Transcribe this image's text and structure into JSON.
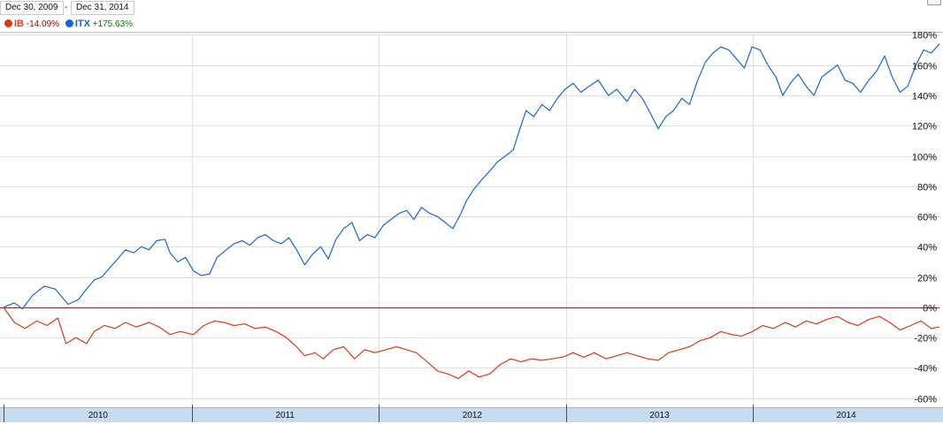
{
  "date_range": {
    "start": "Dec 30, 2009",
    "separator": "-",
    "end": "Dec 31, 2014"
  },
  "legend": [
    {
      "symbol": "IB",
      "change": "-14.09%",
      "color": "#dc3912",
      "sign": "neg"
    },
    {
      "symbol": "ITX",
      "change": "+175.63%",
      "color": "#1565d8",
      "sign": "pos"
    }
  ],
  "colors": {
    "IB": "#dc3912",
    "ITX": "#1565d8",
    "grid": "#e0e0e0",
    "zero_line": "#7f2b2b",
    "timeline": "#c6daf1"
  },
  "chart_data": {
    "type": "line",
    "x_range": [
      "2009-12-30",
      "2014-12-31"
    ],
    "year_labels": [
      "2010",
      "2011",
      "2012",
      "2013",
      "2014"
    ],
    "y_ticks": [
      "180%",
      "160%",
      "140%",
      "120%",
      "100%",
      "80%",
      "60%",
      "40%",
      "20%",
      "0%",
      "-20%",
      "-40%",
      "-60%"
    ],
    "y_tick_values": [
      180,
      160,
      140,
      120,
      100,
      80,
      60,
      40,
      20,
      0,
      -20,
      -40,
      -60
    ],
    "ylim": [
      -66,
      182
    ],
    "grid": true,
    "series": [
      {
        "name": "ITX",
        "color": "#1565d8",
        "points": [
          [
            "2009-12-30",
            0
          ],
          [
            "2010-01-20",
            3
          ],
          [
            "2010-02-05",
            -1
          ],
          [
            "2010-02-25",
            8
          ],
          [
            "2010-03-20",
            14
          ],
          [
            "2010-04-10",
            12
          ],
          [
            "2010-05-05",
            2
          ],
          [
            "2010-05-25",
            5
          ],
          [
            "2010-06-10",
            12
          ],
          [
            "2010-06-25",
            18
          ],
          [
            "2010-07-10",
            20
          ],
          [
            "2010-07-25",
            26
          ],
          [
            "2010-08-10",
            32
          ],
          [
            "2010-08-25",
            38
          ],
          [
            "2010-09-10",
            36
          ],
          [
            "2010-09-25",
            40
          ],
          [
            "2010-10-10",
            38
          ],
          [
            "2010-10-25",
            44
          ],
          [
            "2010-11-10",
            45
          ],
          [
            "2010-11-20",
            36
          ],
          [
            "2010-12-05",
            30
          ],
          [
            "2010-12-20",
            33
          ],
          [
            "2011-01-05",
            24
          ],
          [
            "2011-01-20",
            21
          ],
          [
            "2011-02-05",
            22
          ],
          [
            "2011-02-20",
            33
          ],
          [
            "2011-03-10",
            38
          ],
          [
            "2011-03-25",
            42
          ],
          [
            "2011-04-10",
            44
          ],
          [
            "2011-04-25",
            41
          ],
          [
            "2011-05-10",
            46
          ],
          [
            "2011-05-25",
            48
          ],
          [
            "2011-06-10",
            44
          ],
          [
            "2011-06-25",
            42
          ],
          [
            "2011-07-10",
            46
          ],
          [
            "2011-07-25",
            38
          ],
          [
            "2011-08-10",
            28
          ],
          [
            "2011-08-25",
            35
          ],
          [
            "2011-09-10",
            40
          ],
          [
            "2011-09-25",
            32
          ],
          [
            "2011-10-10",
            45
          ],
          [
            "2011-10-25",
            52
          ],
          [
            "2011-11-10",
            56
          ],
          [
            "2011-11-25",
            44
          ],
          [
            "2011-12-10",
            48
          ],
          [
            "2011-12-25",
            46
          ],
          [
            "2012-01-10",
            54
          ],
          [
            "2012-01-25",
            58
          ],
          [
            "2012-02-10",
            62
          ],
          [
            "2012-02-25",
            64
          ],
          [
            "2012-03-10",
            58
          ],
          [
            "2012-03-25",
            66
          ],
          [
            "2012-04-10",
            62
          ],
          [
            "2012-04-25",
            60
          ],
          [
            "2012-05-10",
            56
          ],
          [
            "2012-05-25",
            52
          ],
          [
            "2012-06-10",
            62
          ],
          [
            "2012-06-20",
            70
          ],
          [
            "2012-07-05",
            78
          ],
          [
            "2012-07-20",
            84
          ],
          [
            "2012-08-05",
            90
          ],
          [
            "2012-08-20",
            96
          ],
          [
            "2012-09-05",
            100
          ],
          [
            "2012-09-20",
            104
          ],
          [
            "2012-10-05",
            120
          ],
          [
            "2012-10-15",
            130
          ],
          [
            "2012-10-30",
            126
          ],
          [
            "2012-11-15",
            134
          ],
          [
            "2012-11-30",
            130
          ],
          [
            "2012-12-15",
            138
          ],
          [
            "2012-12-30",
            144
          ],
          [
            "2013-01-15",
            148
          ],
          [
            "2013-01-30",
            142
          ],
          [
            "2013-02-15",
            146
          ],
          [
            "2013-03-05",
            150
          ],
          [
            "2013-03-25",
            140
          ],
          [
            "2013-04-10",
            144
          ],
          [
            "2013-04-30",
            136
          ],
          [
            "2013-05-15",
            144
          ],
          [
            "2013-05-30",
            138
          ],
          [
            "2013-06-15",
            128
          ],
          [
            "2013-06-30",
            118
          ],
          [
            "2013-07-15",
            126
          ],
          [
            "2013-07-30",
            130
          ],
          [
            "2013-08-15",
            138
          ],
          [
            "2013-08-30",
            134
          ],
          [
            "2013-09-15",
            150
          ],
          [
            "2013-09-30",
            162
          ],
          [
            "2013-10-15",
            168
          ],
          [
            "2013-10-30",
            172
          ],
          [
            "2013-11-15",
            170
          ],
          [
            "2013-11-30",
            164
          ],
          [
            "2013-12-15",
            158
          ],
          [
            "2013-12-30",
            172
          ],
          [
            "2014-01-15",
            170
          ],
          [
            "2014-01-30",
            160
          ],
          [
            "2014-02-15",
            152
          ],
          [
            "2014-02-28",
            140
          ],
          [
            "2014-03-15",
            148
          ],
          [
            "2014-03-30",
            154
          ],
          [
            "2014-04-15",
            146
          ],
          [
            "2014-04-30",
            140
          ],
          [
            "2014-05-15",
            152
          ],
          [
            "2014-05-30",
            156
          ],
          [
            "2014-06-15",
            160
          ],
          [
            "2014-06-30",
            150
          ],
          [
            "2014-07-15",
            148
          ],
          [
            "2014-07-30",
            142
          ],
          [
            "2014-08-15",
            150
          ],
          [
            "2014-08-30",
            156
          ],
          [
            "2014-09-15",
            166
          ],
          [
            "2014-09-30",
            152
          ],
          [
            "2014-10-15",
            142
          ],
          [
            "2014-10-30",
            146
          ],
          [
            "2014-11-15",
            160
          ],
          [
            "2014-11-30",
            170
          ],
          [
            "2014-12-15",
            168
          ],
          [
            "2014-12-31",
            174
          ]
        ]
      },
      {
        "name": "IB",
        "color": "#dc3912",
        "points": [
          [
            "2009-12-30",
            0
          ],
          [
            "2010-01-20",
            -10
          ],
          [
            "2010-02-10",
            -14
          ],
          [
            "2010-03-05",
            -9
          ],
          [
            "2010-03-25",
            -12
          ],
          [
            "2010-04-15",
            -7
          ],
          [
            "2010-05-01",
            -24
          ],
          [
            "2010-05-20",
            -20
          ],
          [
            "2010-06-10",
            -24
          ],
          [
            "2010-06-25",
            -16
          ],
          [
            "2010-07-15",
            -12
          ],
          [
            "2010-08-05",
            -14
          ],
          [
            "2010-08-25",
            -10
          ],
          [
            "2010-09-15",
            -13
          ],
          [
            "2010-10-10",
            -10
          ],
          [
            "2010-10-30",
            -13
          ],
          [
            "2010-11-20",
            -18
          ],
          [
            "2010-12-10",
            -16
          ],
          [
            "2011-01-05",
            -18
          ],
          [
            "2011-01-25",
            -12
          ],
          [
            "2011-02-15",
            -9
          ],
          [
            "2011-03-05",
            -10
          ],
          [
            "2011-03-25",
            -12
          ],
          [
            "2011-04-15",
            -11
          ],
          [
            "2011-05-05",
            -14
          ],
          [
            "2011-05-25",
            -13
          ],
          [
            "2011-06-15",
            -16
          ],
          [
            "2011-07-05",
            -20
          ],
          [
            "2011-07-25",
            -26
          ],
          [
            "2011-08-10",
            -32
          ],
          [
            "2011-08-30",
            -30
          ],
          [
            "2011-09-15",
            -34
          ],
          [
            "2011-10-05",
            -28
          ],
          [
            "2011-10-25",
            -26
          ],
          [
            "2011-11-15",
            -34
          ],
          [
            "2011-12-05",
            -28
          ],
          [
            "2011-12-25",
            -30
          ],
          [
            "2012-01-15",
            -28
          ],
          [
            "2012-02-05",
            -26
          ],
          [
            "2012-02-25",
            -28
          ],
          [
            "2012-03-15",
            -30
          ],
          [
            "2012-04-05",
            -36
          ],
          [
            "2012-04-25",
            -42
          ],
          [
            "2012-05-15",
            -44
          ],
          [
            "2012-06-05",
            -47
          ],
          [
            "2012-06-25",
            -42
          ],
          [
            "2012-07-15",
            -46
          ],
          [
            "2012-08-05",
            -44
          ],
          [
            "2012-08-25",
            -38
          ],
          [
            "2012-09-15",
            -34
          ],
          [
            "2012-10-05",
            -36
          ],
          [
            "2012-10-25",
            -34
          ],
          [
            "2012-11-15",
            -35
          ],
          [
            "2012-12-05",
            -34
          ],
          [
            "2012-12-25",
            -33
          ],
          [
            "2013-01-15",
            -30
          ],
          [
            "2013-02-05",
            -33
          ],
          [
            "2013-02-25",
            -30
          ],
          [
            "2013-03-20",
            -34
          ],
          [
            "2013-04-10",
            -32
          ],
          [
            "2013-04-30",
            -30
          ],
          [
            "2013-05-20",
            -32
          ],
          [
            "2013-06-10",
            -34
          ],
          [
            "2013-06-30",
            -35
          ],
          [
            "2013-07-20",
            -30
          ],
          [
            "2013-08-10",
            -28
          ],
          [
            "2013-08-30",
            -26
          ],
          [
            "2013-09-20",
            -22
          ],
          [
            "2013-10-10",
            -20
          ],
          [
            "2013-10-30",
            -16
          ],
          [
            "2013-11-20",
            -18
          ],
          [
            "2013-12-10",
            -19
          ],
          [
            "2013-12-31",
            -16
          ],
          [
            "2014-01-20",
            -12
          ],
          [
            "2014-02-10",
            -14
          ],
          [
            "2014-03-05",
            -10
          ],
          [
            "2014-03-25",
            -13
          ],
          [
            "2014-04-15",
            -9
          ],
          [
            "2014-05-05",
            -11
          ],
          [
            "2014-05-25",
            -8
          ],
          [
            "2014-06-15",
            -6
          ],
          [
            "2014-07-05",
            -10
          ],
          [
            "2014-07-25",
            -12
          ],
          [
            "2014-08-15",
            -8
          ],
          [
            "2014-09-05",
            -6
          ],
          [
            "2014-09-25",
            -10
          ],
          [
            "2014-10-15",
            -15
          ],
          [
            "2014-11-05",
            -12
          ],
          [
            "2014-11-25",
            -9
          ],
          [
            "2014-12-15",
            -14
          ],
          [
            "2014-12-31",
            -13
          ]
        ]
      }
    ]
  }
}
